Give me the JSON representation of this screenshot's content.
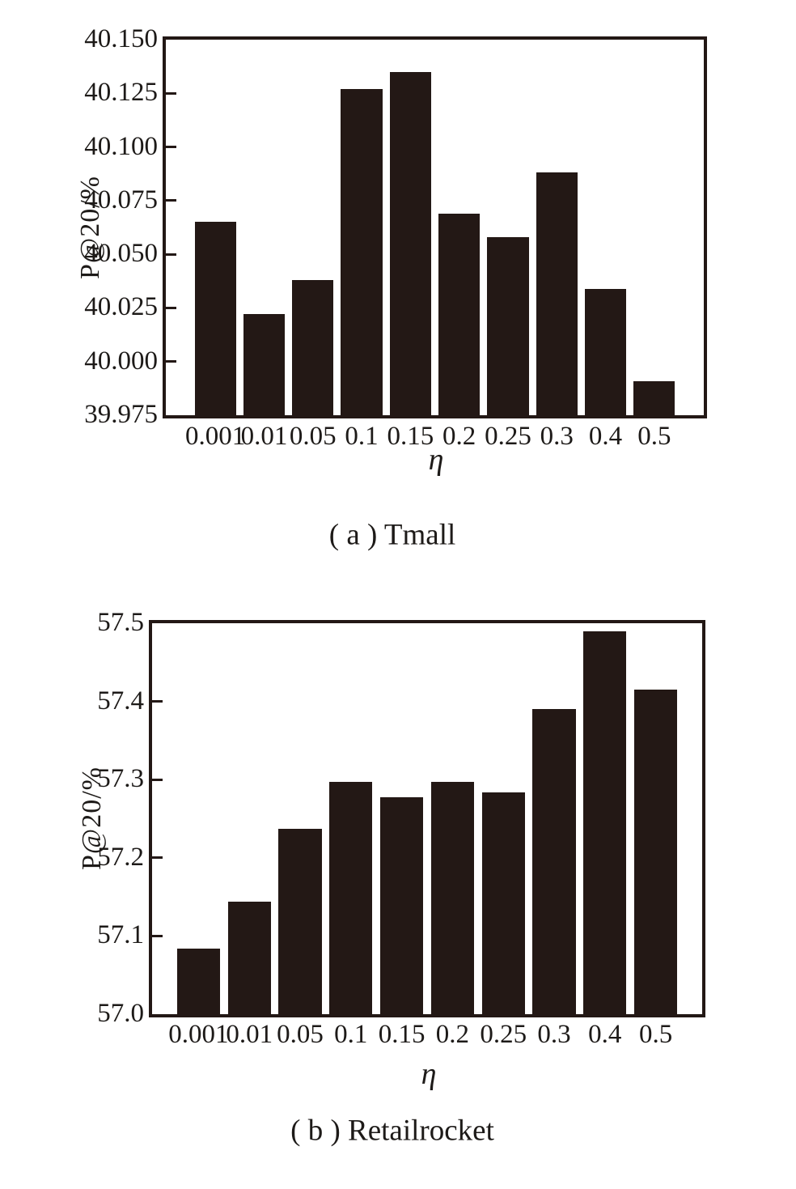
{
  "palette": {
    "bar_color": "#231815",
    "axis_color": "#231815",
    "text_color": "#1d1a18",
    "background": "#ffffff"
  },
  "chart_data": [
    {
      "type": "bar",
      "caption": "( a ) Tmall",
      "xlabel": "η",
      "ylabel": "P@20/%",
      "categories": [
        "0.001",
        "0.01",
        "0.05",
        "0.1",
        "0.15",
        "0.2",
        "0.25",
        "0.3",
        "0.4",
        "0.5"
      ],
      "values": [
        40.065,
        40.022,
        40.038,
        40.127,
        40.135,
        40.069,
        40.058,
        40.088,
        40.034,
        39.991
      ],
      "ylim": [
        39.975,
        40.15
      ],
      "ytick_step": 0.025,
      "ytick_labels": [
        "39.975",
        "40.000",
        "40.025",
        "40.050",
        "40.075",
        "40.100",
        "40.125",
        "40.150"
      ],
      "grid": false,
      "legend": false,
      "bar_color": "#231815"
    },
    {
      "type": "bar",
      "caption": "( b ) Retailrocket",
      "xlabel": "η",
      "ylabel": "P@20/%",
      "categories": [
        "0.001",
        "0.01",
        "0.05",
        "0.1",
        "0.15",
        "0.2",
        "0.25",
        "0.3",
        "0.4",
        "0.5"
      ],
      "values": [
        57.084,
        57.144,
        57.237,
        57.297,
        57.277,
        57.297,
        57.284,
        57.39,
        57.49,
        57.415
      ],
      "ylim": [
        57.0,
        57.5
      ],
      "ytick_step": 0.1,
      "ytick_labels": [
        "57.0",
        "57.1",
        "57.2",
        "57.3",
        "57.4",
        "57.5"
      ],
      "grid": false,
      "legend": false,
      "bar_color": "#231815"
    }
  ]
}
